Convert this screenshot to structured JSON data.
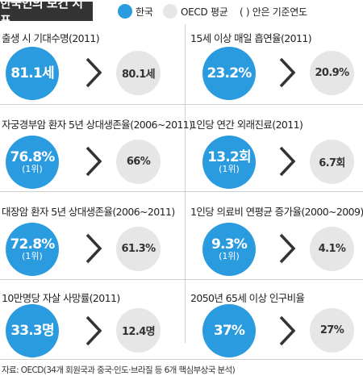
{
  "header": {
    "title": "한국인의 보건 지표",
    "legend_korea": "한국",
    "legend_oecd": "OECD 평균",
    "legend_paren": "(    ) 안은 기준연도"
  },
  "colors": {
    "korea": "#2b9be0",
    "oecd": "#e6e6e6",
    "title_bg": "#333333"
  },
  "panels": [
    {
      "label": "출생 시 기대수명(2011)",
      "korea": "81.1세",
      "rank": "",
      "oecd": "80.1세"
    },
    {
      "label": "15세 이상 매일 흡연율(2011)",
      "korea": "23.2%",
      "rank": "",
      "oecd": "20.9%"
    },
    {
      "label": "자궁경부암 환자 5년 상대생존율(2006~2011)",
      "korea": "76.8%",
      "rank": "(1위)",
      "oecd": "66%"
    },
    {
      "label": "1인당 연간 외래진료(2011)",
      "korea": "13.2회",
      "rank": "(1위)",
      "oecd": "6.7회"
    },
    {
      "label": "대장암 환자 5년 상대생존율(2006~2011)",
      "korea": "72.8%",
      "rank": "(1위)",
      "oecd": "61.3%"
    },
    {
      "label": "1인당 의료비 연평균 증가율(2000~2009)",
      "korea": "9.3%",
      "rank": "(1위)",
      "oecd": "4.1%"
    },
    {
      "label": "10만명당 자살 사망률(2011)",
      "korea": "33.3명",
      "rank": "",
      "oecd": "12.4명"
    },
    {
      "label": "2050년 65세 이상 인구비율",
      "korea": "37%",
      "rank": "",
      "oecd": "27%"
    }
  ],
  "footer": "자료: OECD(34개 회원국과 중국·인도·브라질 등 6개 핵심부상국 분석)"
}
